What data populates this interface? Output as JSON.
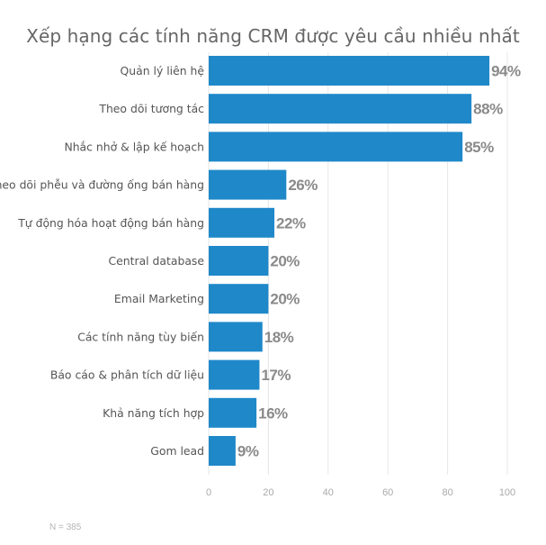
{
  "chart_data": {
    "type": "bar",
    "orientation": "horizontal",
    "title": "Xếp hạng các tính năng CRM được yêu cầu nhiều nhất",
    "categories": [
      "Quản lý liên hệ",
      "Theo dõi tương tác",
      "Nhắc nhở & lập kế hoạch",
      "Theo dõi phễu và đường ống bán hàng",
      "Tự động hóa hoạt động bán hàng",
      "Central database",
      "Email Marketing",
      "Các tính năng tùy biến",
      "Báo cáo & phân tích dữ liệu",
      "Khả năng tích hợp",
      "Gom lead"
    ],
    "values": [
      94,
      88,
      85,
      26,
      22,
      20,
      20,
      18,
      17,
      16,
      9
    ],
    "data_labels": [
      "94%",
      "88%",
      "85%",
      "26%",
      "22%",
      "20%",
      "20%",
      "18%",
      "17%",
      "16%",
      "9%"
    ],
    "xlim": [
      0,
      100
    ],
    "xticks": [
      0,
      20,
      40,
      60,
      80,
      100
    ],
    "grid": true,
    "note": "N = 385",
    "colors": {
      "bar": "#1f88c9",
      "title": "#666666",
      "label": "#555555",
      "value_label": "#8a8a8a",
      "grid": "#e6e6e6",
      "tick": "#aaaaaa"
    }
  }
}
